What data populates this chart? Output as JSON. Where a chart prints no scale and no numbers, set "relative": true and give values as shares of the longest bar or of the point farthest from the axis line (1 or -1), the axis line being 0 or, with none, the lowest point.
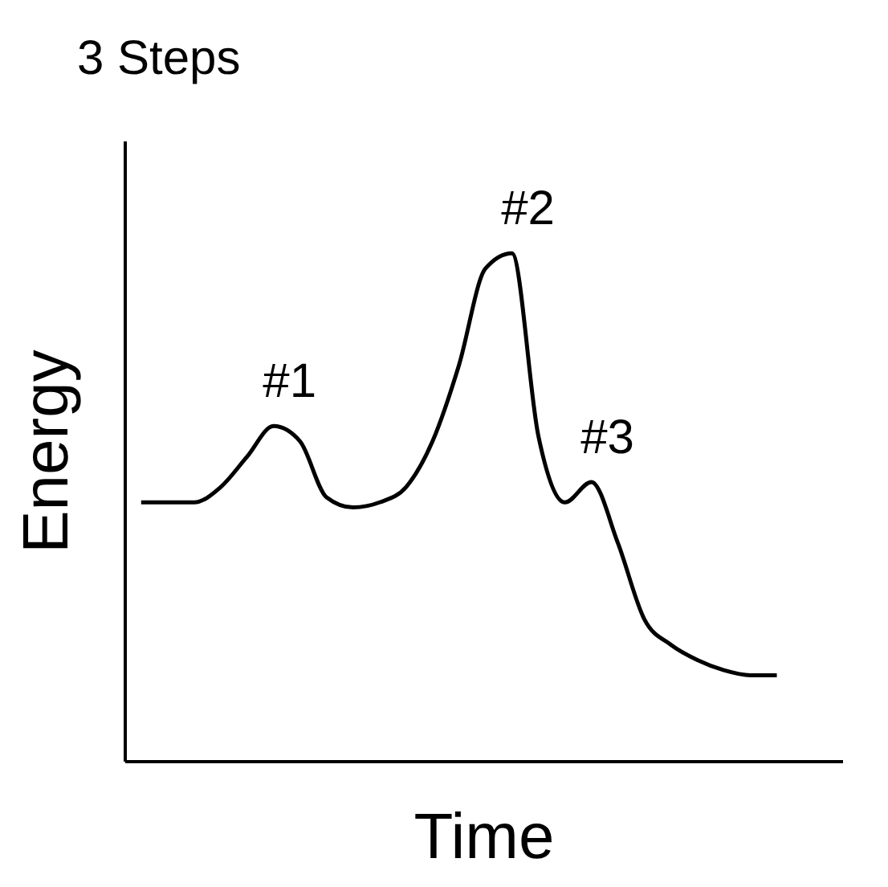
{
  "chart_data": {
    "type": "line",
    "title": "3 Steps",
    "xlabel": "Time",
    "ylabel": "Energy",
    "relative": true,
    "categories": [
      null,
      null,
      null,
      null,
      null,
      null,
      null,
      null,
      null,
      null,
      null,
      null,
      null,
      null,
      null,
      null,
      null,
      null,
      null,
      null,
      null,
      null,
      null,
      null,
      null
    ],
    "series": [
      {
        "color": "#000000",
        "values": [
          0.51,
          0.51,
          0.51,
          0.54,
          0.6,
          0.66,
          0.63,
          0.52,
          0.5,
          0.51,
          0.54,
          0.63,
          0.78,
          0.97,
          1,
          0.64,
          0.51,
          0.55,
          0.43,
          0.28,
          0.23,
          0.2,
          0.18,
          0.17,
          0.17
        ]
      }
    ],
    "annotations": [
      "#1",
      "#2",
      "#3"
    ]
  }
}
